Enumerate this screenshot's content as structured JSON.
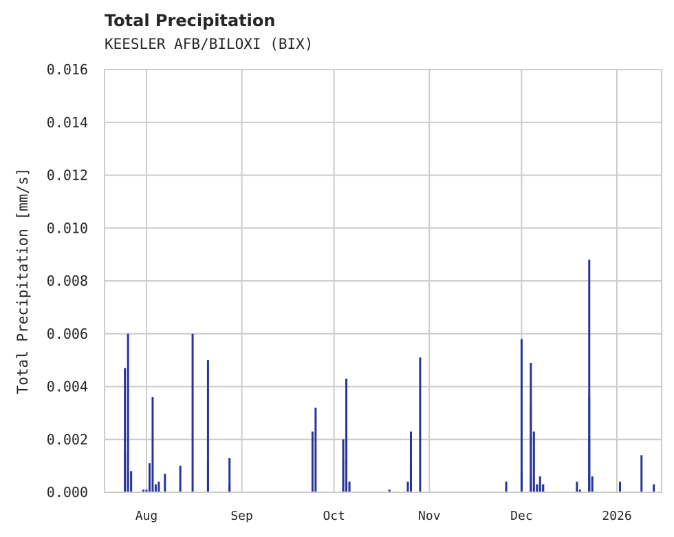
{
  "chart_data": {
    "type": "bar",
    "title": "Total Precipitation",
    "subtitle": "KEESLER AFB/BILOXI (BIX)",
    "xlabel": "",
    "ylabel": "Total Precipitation [mm/s]",
    "ylim": [
      0.0,
      0.016
    ],
    "yticks": [
      "0.000",
      "0.002",
      "0.004",
      "0.006",
      "0.008",
      "0.010",
      "0.012",
      "0.014",
      "0.016"
    ],
    "xticks": [
      "Aug",
      "Sep",
      "Oct",
      "Nov",
      "Dec",
      "2026"
    ],
    "grid": true,
    "legend": null,
    "bar_color": "#27359a",
    "series": [
      {
        "name": "Total Precipitation",
        "points": [
          {
            "date": "2025-07-25",
            "value": 0.0047
          },
          {
            "date": "2025-07-25",
            "value": 0.0015
          },
          {
            "date": "2025-07-26",
            "value": 0.006
          },
          {
            "date": "2025-07-27",
            "value": 0.0008
          },
          {
            "date": "2025-07-31",
            "value": 0.0001
          },
          {
            "date": "2025-08-01",
            "value": 0.0001
          },
          {
            "date": "2025-08-02",
            "value": 0.0011
          },
          {
            "date": "2025-08-03",
            "value": 0.0036
          },
          {
            "date": "2025-08-04",
            "value": 0.0003
          },
          {
            "date": "2025-08-05",
            "value": 0.0004
          },
          {
            "date": "2025-08-07",
            "value": 0.0007
          },
          {
            "date": "2025-08-12",
            "value": 0.001
          },
          {
            "date": "2025-08-16",
            "value": 0.006
          },
          {
            "date": "2025-08-21",
            "value": 0.005
          },
          {
            "date": "2025-08-21",
            "value": 0.0012
          },
          {
            "date": "2025-08-28",
            "value": 0.0013
          },
          {
            "date": "2025-08-28",
            "value": 0.0003
          },
          {
            "date": "2025-09-24",
            "value": 0.0023
          },
          {
            "date": "2025-09-25",
            "value": 0.0032
          },
          {
            "date": "2025-10-04",
            "value": 0.0012
          },
          {
            "date": "2025-10-04",
            "value": 0.002
          },
          {
            "date": "2025-10-05",
            "value": 0.0043
          },
          {
            "date": "2025-10-06",
            "value": 0.0004
          },
          {
            "date": "2025-10-06",
            "value": 0.0004
          },
          {
            "date": "2025-10-19",
            "value": 0.0001
          },
          {
            "date": "2025-10-25",
            "value": 0.0004
          },
          {
            "date": "2025-10-26",
            "value": 0.0023
          },
          {
            "date": "2025-10-26",
            "value": 0.0012
          },
          {
            "date": "2025-10-29",
            "value": 0.0051
          },
          {
            "date": "2025-11-26",
            "value": 0.0004
          },
          {
            "date": "2025-12-01",
            "value": 0.0008
          },
          {
            "date": "2025-12-01",
            "value": 0.0058
          },
          {
            "date": "2025-12-04",
            "value": 0.0006
          },
          {
            "date": "2025-12-04",
            "value": 0.0033
          },
          {
            "date": "2025-12-04",
            "value": 0.0049
          },
          {
            "date": "2025-12-05",
            "value": 0.0023
          },
          {
            "date": "2025-12-06",
            "value": 0.0003
          },
          {
            "date": "2025-12-07",
            "value": 0.0006
          },
          {
            "date": "2025-12-07",
            "value": 0.0003
          },
          {
            "date": "2025-12-08",
            "value": 0.0003
          },
          {
            "date": "2025-12-08",
            "value": 0.0003
          },
          {
            "date": "2025-12-19",
            "value": 0.0004
          },
          {
            "date": "2025-12-20",
            "value": 0.0001
          },
          {
            "date": "2025-12-23",
            "value": 0.0036
          },
          {
            "date": "2025-12-23",
            "value": 0.0088
          },
          {
            "date": "2025-12-23",
            "value": 0.0021
          },
          {
            "date": "2025-12-24",
            "value": 0.0006
          },
          {
            "date": "2026-01-02",
            "value": 0.0004
          },
          {
            "date": "2026-01-02",
            "value": 0.0001
          },
          {
            "date": "2026-01-09",
            "value": 0.0014
          },
          {
            "date": "2026-01-13",
            "value": 0.0003
          }
        ]
      }
    ]
  }
}
